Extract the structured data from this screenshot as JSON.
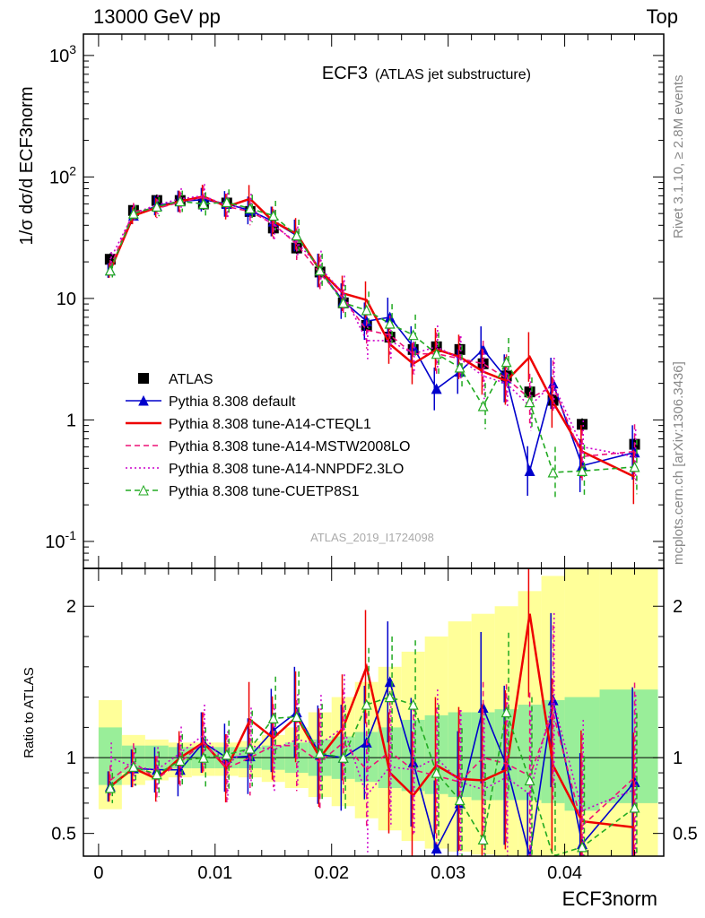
{
  "header": {
    "left": "13000 GeV pp",
    "right": "Top"
  },
  "side_labels": {
    "rivet": "Rivet 3.1.10, ≥ 2.8M events",
    "mcplots": "mcplots.cern.ch [arXiv:1306.3436]"
  },
  "chart_data": [
    {
      "type": "line",
      "panel": "main",
      "title": "ECF3",
      "subtitle": "(ATLAS jet substructure)",
      "watermark": "ATLAS_2019_I1724098",
      "ylabel": "1/σ dσ/d ECF3norm",
      "yscale": "log",
      "ylim": [
        0.06,
        1500
      ],
      "xlim": [
        -0.0013,
        0.0485
      ],
      "yticks": [
        "10^-1",
        "1",
        "10",
        "10^2",
        "10^3"
      ],
      "legend_placement": "lower-left",
      "x": [
        0.001,
        0.003,
        0.005,
        0.007,
        0.009,
        0.011,
        0.013,
        0.015,
        0.017,
        0.019,
        0.021,
        0.023,
        0.025,
        0.027,
        0.029,
        0.031,
        0.033,
        0.035,
        0.037,
        0.039,
        0.0415,
        0.046
      ],
      "series": [
        {
          "name": "ATLAS",
          "color": "#000000",
          "style": "markers-square",
          "values": [
            21,
            53,
            64,
            64,
            60,
            61,
            52,
            38,
            26,
            16.5,
            9.2,
            6.0,
            4.8,
            3.8,
            4.0,
            3.8,
            2.9,
            2.3,
            1.7,
            1.45,
            0.92,
            0.63
          ]
        },
        {
          "name": "Pythia 8.308 default",
          "color": "#0000cc",
          "style": "solid-triangle",
          "values": [
            17,
            48,
            58,
            63,
            65,
            60,
            53,
            43,
            33,
            17,
            9.5,
            6.5,
            7.0,
            4.0,
            1.8,
            2.5,
            3.8,
            2.2,
            0.38,
            2.0,
            0.42,
            0.54
          ]
        },
        {
          "name": "Pythia 8.308 tune-A14-CTEQL1",
          "color": "#ee0000",
          "style": "solid",
          "values": [
            17,
            48,
            56,
            63,
            69,
            57,
            66,
            43,
            34,
            17,
            11,
            9.7,
            4.2,
            2.9,
            3.8,
            3.3,
            2.5,
            2.1,
            3.3,
            1.4,
            0.55,
            0.34
          ]
        },
        {
          "name": "Pythia 8.308 tune-A14-MSTW2008LO",
          "color": "#ee1177",
          "style": "dashed",
          "values": [
            18,
            52,
            55,
            62,
            68,
            57,
            52,
            41,
            28,
            16,
            10,
            5.5,
            5.0,
            3.5,
            3.5,
            3.2,
            2.9,
            2.2,
            1.5,
            1.9,
            0.5,
            0.55
          ]
        },
        {
          "name": "Pythia 8.308 tune-A14-NNPDF2.3LO",
          "color": "#cc00cc",
          "style": "dotted",
          "values": [
            21,
            50,
            59,
            66,
            70,
            58,
            56,
            40,
            29,
            18,
            11,
            4.5,
            4.5,
            3.5,
            4.0,
            3.2,
            2.3,
            2.0,
            1.3,
            2.0,
            0.6,
            0.5
          ]
        },
        {
          "name": "Pythia 8.308 tune-CUETP8S1",
          "color": "#22aa22",
          "style": "dashed-open-triangle",
          "values": [
            17,
            50,
            57,
            63,
            60,
            62,
            55,
            48,
            33,
            17,
            9.2,
            8.0,
            6.2,
            5.0,
            3.5,
            2.7,
            1.3,
            3.0,
            1.4,
            0.37,
            0.38,
            0.41
          ]
        }
      ]
    },
    {
      "type": "line",
      "panel": "ratio",
      "ylabel": "Ratio to ATLAS",
      "xlabel": "ECF3norm",
      "ylim": [
        0.35,
        2.25
      ],
      "xlim": [
        -0.0013,
        0.0485
      ],
      "yticks": [
        "0.5",
        "1",
        "2"
      ],
      "xticks": [
        "0",
        "0.01",
        "0.02",
        "0.03",
        "0.04"
      ],
      "bins": [
        0,
        0.002,
        0.004,
        0.006,
        0.008,
        0.01,
        0.012,
        0.014,
        0.016,
        0.018,
        0.02,
        0.022,
        0.024,
        0.026,
        0.028,
        0.03,
        0.032,
        0.034,
        0.036,
        0.038,
        0.04,
        0.043,
        0.048
      ],
      "band_inner_lo": [
        0.82,
        0.9,
        0.92,
        0.93,
        0.93,
        0.93,
        0.93,
        0.92,
        0.9,
        0.88,
        0.86,
        0.84,
        0.8,
        0.78,
        0.76,
        0.74,
        0.72,
        0.72,
        0.72,
        0.7,
        0.65,
        0.7
      ],
      "band_inner_hi": [
        1.2,
        1.08,
        1.08,
        1.07,
        1.07,
        1.07,
        1.07,
        1.08,
        1.1,
        1.12,
        1.14,
        1.17,
        1.2,
        1.25,
        1.28,
        1.3,
        1.3,
        1.32,
        1.35,
        1.38,
        1.4,
        1.45
      ],
      "band_outer_lo": [
        0.66,
        0.82,
        0.85,
        0.87,
        0.88,
        0.88,
        0.87,
        0.84,
        0.8,
        0.74,
        0.68,
        0.6,
        0.52,
        0.45,
        0.4,
        0.38,
        0.36,
        0.35,
        0.35,
        0.35,
        0.35,
        0.35
      ],
      "band_outer_hi": [
        1.38,
        1.15,
        1.12,
        1.1,
        1.1,
        1.1,
        1.11,
        1.15,
        1.2,
        1.3,
        1.4,
        1.5,
        1.6,
        1.7,
        1.8,
        1.9,
        1.95,
        2.0,
        2.1,
        2.2,
        2.4,
        2.25
      ],
      "x": [
        0.001,
        0.003,
        0.005,
        0.007,
        0.009,
        0.011,
        0.013,
        0.015,
        0.017,
        0.019,
        0.021,
        0.023,
        0.025,
        0.027,
        0.029,
        0.031,
        0.033,
        0.035,
        0.037,
        0.039,
        0.0415,
        0.046
      ],
      "series": [
        {
          "name": "Pythia 8.308 default",
          "color": "#0000cc",
          "values": [
            0.81,
            0.93,
            0.92,
            0.92,
            1.1,
            1.0,
            1.01,
            1.18,
            1.3,
            1.02,
            1.0,
            1.1,
            1.5,
            0.97,
            0.4,
            0.7,
            1.33,
            0.95,
            0.22,
            1.38,
            0.43,
            0.84
          ]
        },
        {
          "name": "Pythia 8.308 tune-A14-CTEQL1",
          "color": "#ee0000",
          "values": [
            0.81,
            0.93,
            0.86,
            1.0,
            1.1,
            0.93,
            1.25,
            1.13,
            1.27,
            1.0,
            1.2,
            1.6,
            0.9,
            0.75,
            0.95,
            0.86,
            0.85,
            0.92,
            1.95,
            0.95,
            0.58,
            0.54
          ]
        },
        {
          "name": "Pythia 8.308 tune-A14-MSTW2008LO",
          "color": "#ee1177",
          "values": [
            0.85,
            0.97,
            0.86,
            0.97,
            1.1,
            0.93,
            1.0,
            1.08,
            1.08,
            0.97,
            1.1,
            0.92,
            1.04,
            0.92,
            0.88,
            0.84,
            1.0,
            0.96,
            0.88,
            1.3,
            0.55,
            0.87
          ]
        },
        {
          "name": "Pythia 8.308 tune-A14-NNPDF2.3LO",
          "color": "#cc00cc",
          "values": [
            1.0,
            0.94,
            0.92,
            1.03,
            1.15,
            0.95,
            1.08,
            1.05,
            1.12,
            1.09,
            1.2,
            0.75,
            0.94,
            0.92,
            1.0,
            0.84,
            0.79,
            0.87,
            0.76,
            1.38,
            0.65,
            0.79
          ]
        },
        {
          "name": "Pythia 8.308 tune-CUETP8S1",
          "color": "#22aa22",
          "values": [
            0.8,
            0.94,
            0.89,
            0.98,
            1.0,
            1.02,
            1.06,
            1.26,
            1.27,
            1.03,
            1.0,
            1.35,
            1.4,
            1.35,
            0.9,
            0.72,
            0.46,
            1.3,
            0.85,
            0.26,
            0.41,
            0.67
          ]
        }
      ]
    }
  ]
}
